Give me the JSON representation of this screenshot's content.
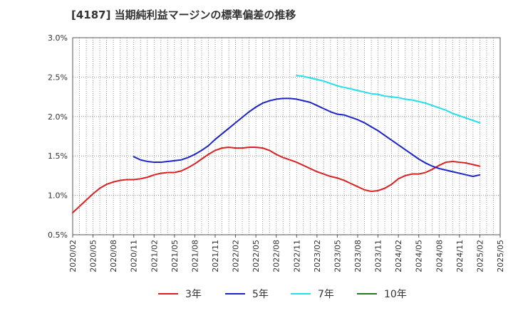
{
  "chart_data": {
    "type": "line",
    "title": "[4187]  当期純利益マージンの標準偏差の推移",
    "xlabel": "",
    "ylabel": "",
    "ylim": [
      0.5,
      3.0
    ],
    "y_ticks": [
      "0.5%",
      "1.0%",
      "1.5%",
      "2.0%",
      "2.5%",
      "3.0%"
    ],
    "x_ticks": [
      "2020/02",
      "2020/05",
      "2020/08",
      "2020/11",
      "2021/02",
      "2021/05",
      "2021/08",
      "2021/11",
      "2022/02",
      "2022/05",
      "2022/08",
      "2022/11",
      "2023/02",
      "2023/05",
      "2023/08",
      "2023/11",
      "2024/02",
      "2024/05",
      "2024/08",
      "2024/11",
      "2025/02",
      "2025/05"
    ],
    "grid": true,
    "legend_position": "bottom",
    "series": [
      {
        "name": "3年",
        "color": "#dd1f1f",
        "x": [
          "2020/02",
          "2020/03",
          "2020/04",
          "2020/05",
          "2020/06",
          "2020/07",
          "2020/08",
          "2020/09",
          "2020/10",
          "2020/11",
          "2020/12",
          "2021/01",
          "2021/02",
          "2021/03",
          "2021/04",
          "2021/05",
          "2021/06",
          "2021/07",
          "2021/08",
          "2021/09",
          "2021/10",
          "2021/11",
          "2021/12",
          "2022/01",
          "2022/02",
          "2022/03",
          "2022/04",
          "2022/05",
          "2022/06",
          "2022/07",
          "2022/08",
          "2022/09",
          "2022/10",
          "2022/11",
          "2022/12",
          "2023/01",
          "2023/02",
          "2023/03",
          "2023/04",
          "2023/05",
          "2023/06",
          "2023/07",
          "2023/08",
          "2023/09",
          "2023/10",
          "2023/11",
          "2023/12",
          "2024/01",
          "2024/02",
          "2024/03",
          "2024/04",
          "2024/05",
          "2024/06",
          "2024/07",
          "2024/08",
          "2024/09",
          "2024/10",
          "2024/11",
          "2024/12",
          "2025/01",
          "2025/02"
        ],
        "values": [
          0.78,
          0.86,
          0.94,
          1.02,
          1.09,
          1.14,
          1.17,
          1.19,
          1.2,
          1.2,
          1.21,
          1.23,
          1.26,
          1.28,
          1.29,
          1.29,
          1.31,
          1.35,
          1.4,
          1.46,
          1.52,
          1.57,
          1.6,
          1.61,
          1.6,
          1.6,
          1.61,
          1.61,
          1.6,
          1.57,
          1.52,
          1.48,
          1.45,
          1.42,
          1.38,
          1.34,
          1.3,
          1.27,
          1.24,
          1.22,
          1.19,
          1.15,
          1.11,
          1.07,
          1.05,
          1.06,
          1.09,
          1.14,
          1.21,
          1.25,
          1.27,
          1.27,
          1.29,
          1.33,
          1.38,
          1.42,
          1.43,
          1.42,
          1.41,
          1.39,
          1.37
        ]
      },
      {
        "name": "5年",
        "color": "#1a24c8",
        "x": [
          "2020/11",
          "2020/12",
          "2021/01",
          "2021/02",
          "2021/03",
          "2021/04",
          "2021/05",
          "2021/06",
          "2021/07",
          "2021/08",
          "2021/09",
          "2021/10",
          "2021/11",
          "2021/12",
          "2022/01",
          "2022/02",
          "2022/03",
          "2022/04",
          "2022/05",
          "2022/06",
          "2022/07",
          "2022/08",
          "2022/09",
          "2022/10",
          "2022/11",
          "2022/12",
          "2023/01",
          "2023/02",
          "2023/03",
          "2023/04",
          "2023/05",
          "2023/06",
          "2023/07",
          "2023/08",
          "2023/09",
          "2023/10",
          "2023/11",
          "2023/12",
          "2024/01",
          "2024/02",
          "2024/03",
          "2024/04",
          "2024/05",
          "2024/06",
          "2024/07",
          "2024/08",
          "2024/09",
          "2024/10",
          "2024/11",
          "2024/12",
          "2025/01",
          "2025/02"
        ],
        "values": [
          1.49,
          1.45,
          1.43,
          1.42,
          1.42,
          1.43,
          1.44,
          1.45,
          1.48,
          1.52,
          1.57,
          1.63,
          1.71,
          1.78,
          1.85,
          1.92,
          1.99,
          2.06,
          2.12,
          2.17,
          2.2,
          2.22,
          2.23,
          2.23,
          2.22,
          2.2,
          2.18,
          2.14,
          2.1,
          2.06,
          2.03,
          2.02,
          1.99,
          1.96,
          1.92,
          1.87,
          1.82,
          1.76,
          1.7,
          1.64,
          1.58,
          1.52,
          1.46,
          1.41,
          1.37,
          1.34,
          1.32,
          1.3,
          1.28,
          1.26,
          1.24,
          1.26
        ]
      },
      {
        "name": "7年",
        "color": "#22e0ea",
        "x": [
          "2022/11",
          "2022/12",
          "2023/01",
          "2023/02",
          "2023/03",
          "2023/04",
          "2023/05",
          "2023/06",
          "2023/07",
          "2023/08",
          "2023/09",
          "2023/10",
          "2023/11",
          "2023/12",
          "2024/01",
          "2024/02",
          "2024/03",
          "2024/04",
          "2024/05",
          "2024/06",
          "2024/07",
          "2024/08",
          "2024/09",
          "2024/10",
          "2024/11",
          "2024/12",
          "2025/01",
          "2025/02"
        ],
        "values": [
          2.52,
          2.51,
          2.49,
          2.47,
          2.45,
          2.42,
          2.39,
          2.37,
          2.35,
          2.33,
          2.31,
          2.29,
          2.28,
          2.26,
          2.25,
          2.24,
          2.22,
          2.21,
          2.19,
          2.17,
          2.14,
          2.11,
          2.08,
          2.04,
          2.01,
          1.98,
          1.95,
          1.92
        ]
      },
      {
        "name": "10年",
        "color": "#1e7d1e",
        "x": [],
        "values": []
      }
    ]
  }
}
